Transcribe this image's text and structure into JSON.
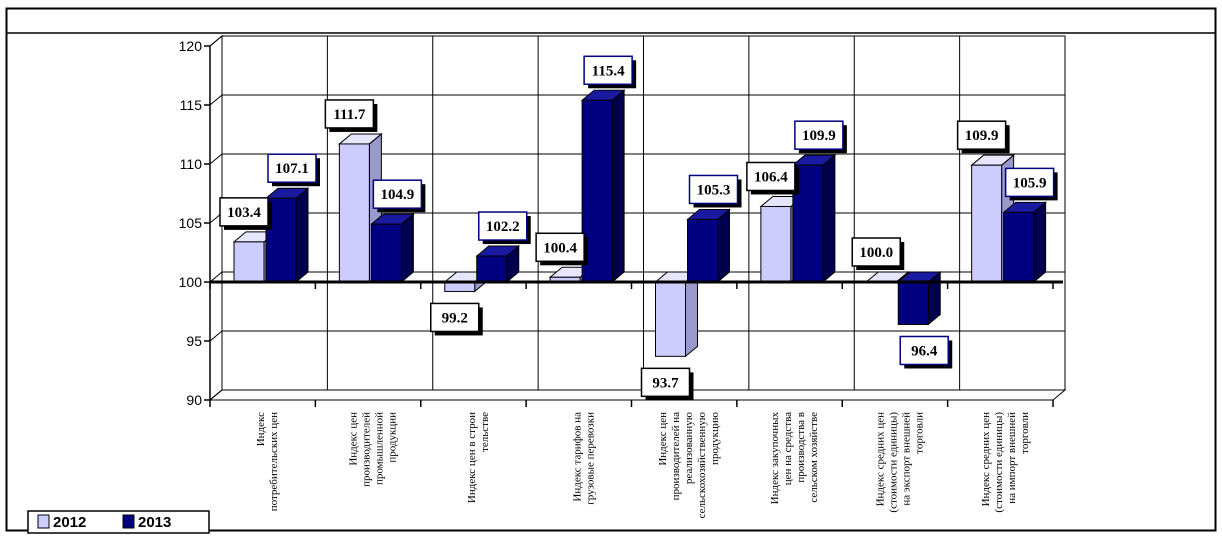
{
  "chart_data": {
    "type": "bar",
    "categories": [
      [
        "Индекс",
        "потребительских цен"
      ],
      [
        "Индекс цен",
        "производителей",
        "промышленной",
        "продукции"
      ],
      [
        "Индекс цен в строи",
        "тельстве"
      ],
      [
        "Индекс тарифов на",
        "грузовые перевозки"
      ],
      [
        "Индекс цен",
        "производителей на",
        "реализованную",
        "сельскохозяйственную",
        "продукцию"
      ],
      [
        "Индекс закупочных",
        "цен на средства",
        "производства в",
        "сельском хозяйстве"
      ],
      [
        "Индекс средних цен",
        "(стоимости единицы)",
        "на экспорт внешней",
        "торговли"
      ],
      [
        "Индекс средних цен",
        "(стоимости единицы)",
        "на импорт внешней",
        "торговли"
      ]
    ],
    "series": [
      {
        "name": "2012",
        "values": [
          103.4,
          111.7,
          99.2,
          100.4,
          93.7,
          106.4,
          100.0,
          109.9
        ],
        "labels": [
          "103.4",
          "111.7",
          "99.2",
          "100.4",
          "93.7",
          "106.4",
          "100.0",
          "109.9"
        ],
        "color": "#ccccff"
      },
      {
        "name": "2013",
        "values": [
          107.1,
          104.9,
          102.2,
          115.4,
          105.3,
          109.9,
          96.4,
          105.9
        ],
        "labels": [
          "107.1",
          "104.9",
          "102.2",
          "115.4",
          "105.3",
          "109.9",
          "96.4",
          "105.9"
        ],
        "color": "#000080"
      }
    ],
    "y_ticks": [
      "90",
      "95",
      "100",
      "105",
      "110",
      "115",
      "120"
    ],
    "ylim": [
      90,
      120
    ],
    "baseline": 100,
    "grid": true,
    "legend_position": "bottom-left"
  }
}
